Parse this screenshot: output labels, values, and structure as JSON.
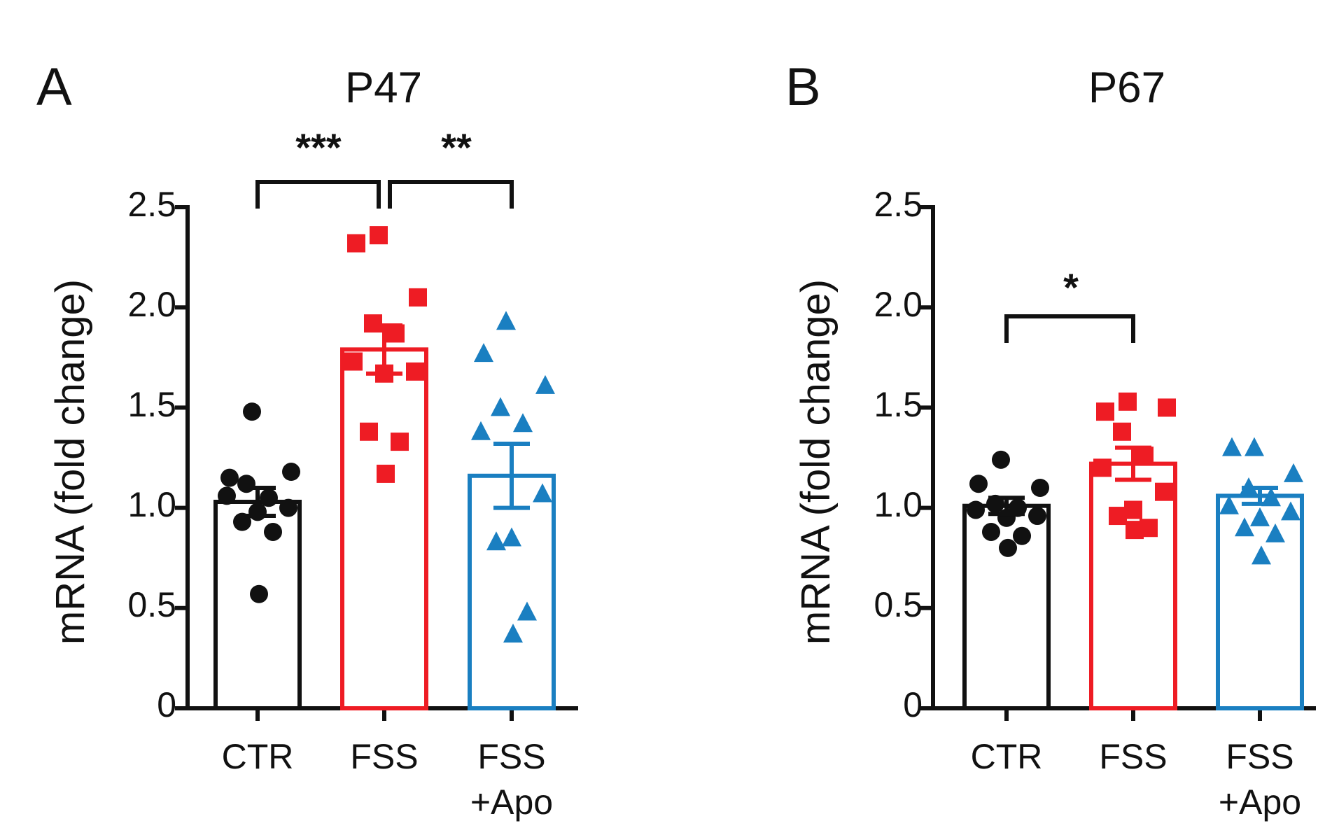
{
  "chart_data": [
    {
      "type": "bar",
      "panel": "A",
      "title": "P47",
      "ylabel": "mRNA (fold change)",
      "xlabel": "",
      "ylim": [
        0,
        2.5
      ],
      "yticks": [
        0,
        0.5,
        1.0,
        1.5,
        2.0,
        2.5
      ],
      "ytick_labels": [
        "0",
        "0.5",
        "1.0",
        "1.5",
        "2.0",
        "2.5"
      ],
      "categories": [
        {
          "label_line1": "CTR",
          "label_line2": ""
        },
        {
          "label_line1": "FSS",
          "label_line2": ""
        },
        {
          "label_line1": "FSS",
          "label_line2": "+Apo"
        }
      ],
      "series": [
        {
          "name": "CTR",
          "color": "#111111",
          "marker": "circle",
          "mean": 1.03,
          "sem": 0.07,
          "points": [
            1.48,
            1.15,
            1.18,
            1.12,
            1.05,
            1.06,
            1.0,
            0.98,
            0.93,
            0.88,
            0.57
          ]
        },
        {
          "name": "FSS",
          "color": "#ee1c24",
          "marker": "square",
          "mean": 1.79,
          "sem": 0.12,
          "points": [
            2.36,
            2.32,
            2.05,
            1.92,
            1.87,
            1.73,
            1.68,
            1.67,
            1.38,
            1.33,
            1.17
          ]
        },
        {
          "name": "FSS+Apo",
          "color": "#1a7fc1",
          "marker": "triangle",
          "mean": 1.16,
          "sem": 0.16,
          "points": [
            1.93,
            1.77,
            1.61,
            1.5,
            1.42,
            1.38,
            1.07,
            0.85,
            0.83,
            0.48,
            0.37
          ]
        }
      ],
      "significance": [
        {
          "from": 0,
          "to": 1,
          "label": "***"
        },
        {
          "from": 1,
          "to": 2,
          "label": "**"
        }
      ]
    },
    {
      "type": "bar",
      "panel": "B",
      "title": "P67",
      "ylabel": "mRNA (fold change)",
      "xlabel": "",
      "ylim": [
        0,
        2.5
      ],
      "yticks": [
        0,
        0.5,
        1.0,
        1.5,
        2.0,
        2.5
      ],
      "ytick_labels": [
        "0",
        "0.5",
        "1.0",
        "1.5",
        "2.0",
        "2.5"
      ],
      "categories": [
        {
          "label_line1": "CTR",
          "label_line2": ""
        },
        {
          "label_line1": "FSS",
          "label_line2": ""
        },
        {
          "label_line1": "FSS",
          "label_line2": "+Apo"
        }
      ],
      "series": [
        {
          "name": "CTR",
          "color": "#111111",
          "marker": "circle",
          "mean": 1.01,
          "sem": 0.04,
          "points": [
            1.24,
            1.12,
            1.1,
            1.02,
            1.0,
            0.99,
            0.96,
            0.95,
            0.88,
            0.86,
            0.8
          ]
        },
        {
          "name": "FSS",
          "color": "#ee1c24",
          "marker": "square",
          "mean": 1.22,
          "sem": 0.08,
          "points": [
            1.53,
            1.48,
            1.5,
            1.38,
            1.26,
            1.2,
            1.08,
            0.99,
            0.96,
            0.9,
            0.89
          ]
        },
        {
          "name": "FSS+Apo",
          "color": "#1a7fc1",
          "marker": "triangle",
          "mean": 1.06,
          "sem": 0.04,
          "points": [
            1.3,
            1.3,
            1.17,
            1.1,
            1.05,
            1.01,
            0.98,
            0.95,
            0.9,
            0.87,
            0.76
          ]
        }
      ],
      "significance": [
        {
          "from": 0,
          "to": 1,
          "label": "*"
        }
      ]
    }
  ]
}
